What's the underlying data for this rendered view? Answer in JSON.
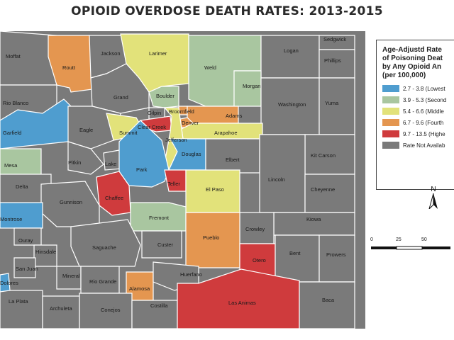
{
  "title": "OPIOID OVERDOSE DEATH RATES:  2013-2015",
  "legend": {
    "title": "Age-Adjustd Rate\nof Poisoning Deat\nby Any Opioid An\n(per 100,000)",
    "items": [
      {
        "label": "2.7 - 3.8 (Lowest",
        "color": "#4f9dcf"
      },
      {
        "label": "3.9 - 5.3 (Second",
        "color": "#a9c6a0"
      },
      {
        "label": "5.4 - 6.6 (Middle",
        "color": "#e2e27a"
      },
      {
        "label": "6.7 - 9.6 (Fourth",
        "color": "#e49650"
      },
      {
        "label": "9.7 - 13.5 (Highe",
        "color": "#cf3b3d"
      },
      {
        "label": "Rate Not Availab",
        "color": "#7a7a7a"
      }
    ]
  },
  "north_label": "N",
  "scale": {
    "ticks": [
      "0",
      "25",
      "50"
    ]
  },
  "counties": [
    {
      "name": "Moffat",
      "color": "#7a7a7a"
    },
    {
      "name": "Routt",
      "color": "#e49650"
    },
    {
      "name": "Jackson",
      "color": "#7a7a7a"
    },
    {
      "name": "Larimer",
      "color": "#e2e27a"
    },
    {
      "name": "Weld",
      "color": "#a9c6a0"
    },
    {
      "name": "Logan",
      "color": "#7a7a7a"
    },
    {
      "name": "Sedgwick",
      "color": "#7a7a7a"
    },
    {
      "name": "Phillips",
      "color": "#7a7a7a"
    },
    {
      "name": "Morgan",
      "color": "#a9c6a0"
    },
    {
      "name": "Washington",
      "color": "#7a7a7a"
    },
    {
      "name": "Yuma",
      "color": "#7a7a7a"
    },
    {
      "name": "Rio Blanco",
      "color": "#7a7a7a"
    },
    {
      "name": "Garfield",
      "color": "#4f9dcf"
    },
    {
      "name": "Grand",
      "color": "#7a7a7a"
    },
    {
      "name": "Boulder",
      "color": "#a9c6a0"
    },
    {
      "name": "Broomfield",
      "color": "#e49650"
    },
    {
      "name": "Adams",
      "color": "#e49650"
    },
    {
      "name": "Gilpin",
      "color": "#7a7a7a"
    },
    {
      "name": "Denver",
      "color": "#e49650"
    },
    {
      "name": "Arapahoe",
      "color": "#e2e27a"
    },
    {
      "name": "Clear Creek",
      "color": "#cf3b3d"
    },
    {
      "name": "Jefferson",
      "color": "#e2e27a"
    },
    {
      "name": "Eagle",
      "color": "#7a7a7a"
    },
    {
      "name": "Summit",
      "color": "#e2e27a"
    },
    {
      "name": "Douglas",
      "color": "#4f9dcf"
    },
    {
      "name": "Elbert",
      "color": "#7a7a7a"
    },
    {
      "name": "Kit Carson",
      "color": "#7a7a7a"
    },
    {
      "name": "Mesa",
      "color": "#a9c6a0"
    },
    {
      "name": "Pitkin",
      "color": "#7a7a7a"
    },
    {
      "name": "Lake",
      "color": "#7a7a7a"
    },
    {
      "name": "Park",
      "color": "#4f9dcf"
    },
    {
      "name": "Teller",
      "color": "#cf3b3d"
    },
    {
      "name": "Lincoln",
      "color": "#7a7a7a"
    },
    {
      "name": "Delta",
      "color": "#7a7a7a"
    },
    {
      "name": "El Paso",
      "color": "#e2e27a"
    },
    {
      "name": "Cheyenne",
      "color": "#7a7a7a"
    },
    {
      "name": "Chaffee",
      "color": "#cf3b3d"
    },
    {
      "name": "Gunnison",
      "color": "#7a7a7a"
    },
    {
      "name": "Montrose",
      "color": "#4f9dcf"
    },
    {
      "name": "Fremont",
      "color": "#a9c6a0"
    },
    {
      "name": "Kiowa",
      "color": "#7a7a7a"
    },
    {
      "name": "Crowley",
      "color": "#7a7a7a"
    },
    {
      "name": "Ouray",
      "color": "#7a7a7a"
    },
    {
      "name": "Custer",
      "color": "#7a7a7a"
    },
    {
      "name": "Pueblo",
      "color": "#e49650"
    },
    {
      "name": "Saguache",
      "color": "#7a7a7a"
    },
    {
      "name": "Hinsdale",
      "color": "#7a7a7a"
    },
    {
      "name": "San Juan",
      "color": "#7a7a7a"
    },
    {
      "name": "Otero",
      "color": "#cf3b3d"
    },
    {
      "name": "Bent",
      "color": "#7a7a7a"
    },
    {
      "name": "Prowers",
      "color": "#7a7a7a"
    },
    {
      "name": "Mineral",
      "color": "#7a7a7a"
    },
    {
      "name": "Rio Grande",
      "color": "#7a7a7a"
    },
    {
      "name": "Alamosa",
      "color": "#e49650"
    },
    {
      "name": "Huerfano",
      "color": "#7a7a7a"
    },
    {
      "name": "La Plata",
      "color": "#7a7a7a"
    },
    {
      "name": "Archuleta",
      "color": "#7a7a7a"
    },
    {
      "name": "Conejos",
      "color": "#7a7a7a"
    },
    {
      "name": "Costilla",
      "color": "#7a7a7a"
    },
    {
      "name": "Las Animas",
      "color": "#cf3b3d"
    },
    {
      "name": "Baca",
      "color": "#7a7a7a"
    },
    {
      "name": "Dolores",
      "color": "#4f9dcf"
    }
  ]
}
